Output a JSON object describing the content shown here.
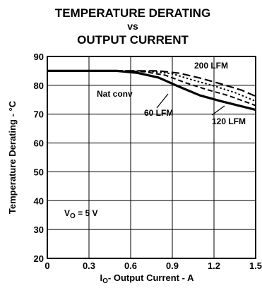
{
  "title_lines": [
    "TEMPERATURE DERATING",
    "vs",
    "OUTPUT CURRENT"
  ],
  "chart_data": {
    "type": "line",
    "title": "TEMPERATURE DERATING vs OUTPUT CURRENT",
    "ylabel": "Temperature Derating - °C",
    "xlabel": {
      "prefix": "I",
      "subscript": "O",
      "rest": "- Output Current - A"
    },
    "xlim": [
      0,
      1.5
    ],
    "ylim": [
      20,
      90
    ],
    "xticks": [
      0,
      0.3,
      0.6,
      0.9,
      1.2,
      1.5
    ],
    "xtick_labels": [
      "0",
      "0.3",
      "0.6",
      "0.9",
      "1.2",
      "1.5"
    ],
    "yticks": [
      20,
      30,
      40,
      50,
      60,
      70,
      80,
      90
    ],
    "grid": true,
    "series": [
      {
        "name": "Nat conv",
        "style": "solid",
        "width": 3.2,
        "x": [
          0,
          0.5,
          0.65,
          0.8,
          0.95,
          1.1,
          1.25,
          1.5
        ],
        "y": [
          85,
          85,
          84.3,
          82.7,
          79.5,
          76.5,
          74.5,
          71.5
        ]
      },
      {
        "name": "60 LFM",
        "style": "dash",
        "width": 2,
        "x": [
          0,
          0.55,
          0.7,
          0.85,
          1.0,
          1.15,
          1.3,
          1.5
        ],
        "y": [
          85,
          85,
          84.7,
          83.5,
          80.8,
          78.5,
          76.5,
          73
        ]
      },
      {
        "name": "120 LFM",
        "style": "dot",
        "width": 2,
        "x": [
          0,
          0.6,
          0.75,
          0.9,
          1.05,
          1.2,
          1.35,
          1.5
        ],
        "y": [
          85,
          85,
          84.8,
          84,
          81.8,
          79.8,
          77.5,
          74.5
        ]
      },
      {
        "name": "200 LFM",
        "style": "longdash",
        "width": 2.2,
        "x": [
          0,
          0.65,
          0.8,
          0.95,
          1.1,
          1.25,
          1.4,
          1.5
        ],
        "y": [
          85,
          85,
          85,
          84.2,
          82.5,
          80.5,
          78.3,
          76.2
        ]
      }
    ],
    "annotations": [
      {
        "text": "200 LFM"
      },
      {
        "text": "Nat conv"
      },
      {
        "text": "60 LFM"
      },
      {
        "text": "120 LFM"
      }
    ],
    "condition": {
      "prefix": "V",
      "subscript": "O",
      "rest": " = 5 V"
    }
  }
}
